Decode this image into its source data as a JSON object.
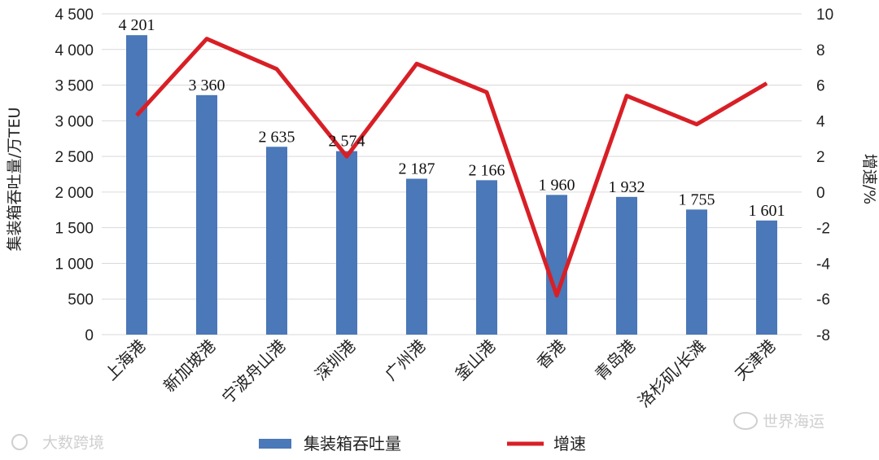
{
  "chart_data": {
    "type": "bar",
    "categories": [
      "上海港",
      "新加坡港",
      "宁波舟山港",
      "深圳港",
      "广州港",
      "釜山港",
      "香港",
      "青岛港",
      "洛杉矶/长滩",
      "天津港"
    ],
    "series": [
      {
        "name": "集装箱吞吐量",
        "type": "bar",
        "axis": "left",
        "color": "#4a78b8",
        "values": [
          4201,
          3360,
          2635,
          2574,
          2187,
          2166,
          1960,
          1932,
          1755,
          1601
        ],
        "value_labels": [
          "4 201",
          "3 360",
          "2 635",
          "2 574",
          "2 187",
          "2 166",
          "1 960",
          "1 932",
          "1 755",
          "1 601"
        ]
      },
      {
        "name": "增速",
        "type": "line",
        "axis": "right",
        "color": "#d81f26",
        "values": [
          4.3,
          8.6,
          6.9,
          2.0,
          7.2,
          5.6,
          -5.8,
          5.4,
          3.8,
          6.1
        ]
      }
    ],
    "ylabel": "集装箱吞吐量/万TEU",
    "ylim": [
      0,
      4500
    ],
    "ytick_labels": [
      "0",
      "500",
      "1 000",
      "1 500",
      "2 000",
      "2 500",
      "3 000",
      "3 500",
      "4 000",
      "4 500"
    ],
    "y2label": "增速/%",
    "y2lim": [
      -8,
      10
    ],
    "y2tick_labels": [
      "-8",
      "-6",
      "-4",
      "-2",
      "0",
      "2",
      "4",
      "6",
      "8",
      "10"
    ],
    "grid": "horizontal",
    "legend": "bottom"
  },
  "watermarks": {
    "left": "大数跨境",
    "right": "世界海运"
  }
}
